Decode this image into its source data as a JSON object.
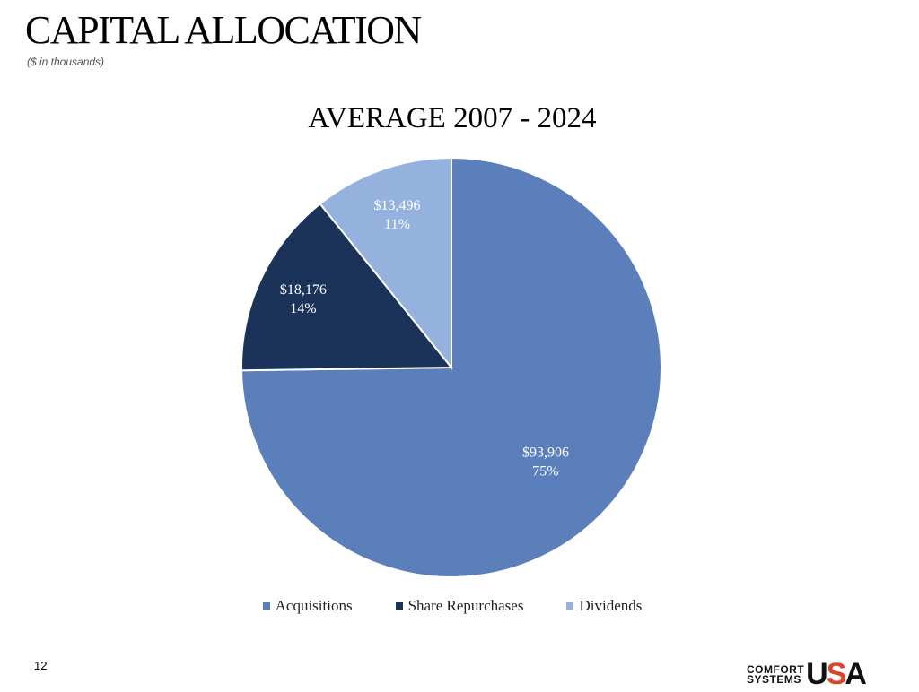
{
  "header": {
    "title": "CAPITAL ALLOCATION",
    "subtitle": "($ in thousands)"
  },
  "chart_data": {
    "type": "pie",
    "title": "AVERAGE 2007 - 2024",
    "start_angle": "top",
    "direction": "clockwise",
    "legend_position": "bottom",
    "slices": [
      {
        "name": "Acquisitions",
        "value": 93906,
        "value_label": "$93,906",
        "percent_label": "75%",
        "color": "#5b7fbb"
      },
      {
        "name": "Share Repurchases",
        "value": 18176,
        "value_label": "$18,176",
        "percent_label": "14%",
        "color": "#1c3359"
      },
      {
        "name": "Dividends",
        "value": 13496,
        "value_label": "$13,496",
        "percent_label": "11%",
        "color": "#95b1de"
      }
    ]
  },
  "footer": {
    "page_number": "12",
    "logo_text": "COMFORT SYSTEMS USA"
  }
}
